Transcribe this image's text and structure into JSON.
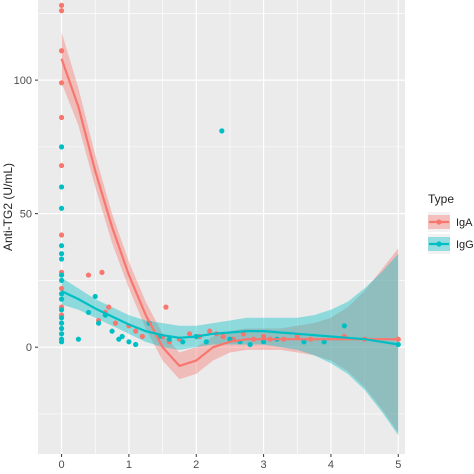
{
  "chart_data": {
    "type": "scatter",
    "title": "",
    "xlabel": "",
    "ylabel": "Anti-TG2 (U/mL)",
    "xlim": [
      -0.35,
      5.1
    ],
    "ylim": [
      -40,
      130
    ],
    "x_ticks": [
      0,
      1,
      2,
      3,
      4,
      5
    ],
    "y_ticks": [
      0,
      50,
      100
    ],
    "x_tick_labels": [
      "0",
      "1",
      "2",
      "3",
      "4",
      "5"
    ],
    "y_tick_labels": [
      "0",
      "50",
      "100"
    ],
    "grid": true,
    "panel_background": "#ebebeb",
    "legend": {
      "title": "Type",
      "position": "right",
      "entries": [
        "IgA",
        "IgG"
      ]
    },
    "series": [
      {
        "name": "IgA",
        "color": "#f8766d",
        "points": [
          {
            "x": 0,
            "y": 128
          },
          {
            "x": 0,
            "y": 126
          },
          {
            "x": 0,
            "y": 111
          },
          {
            "x": 0,
            "y": 99
          },
          {
            "x": 0,
            "y": 86
          },
          {
            "x": 0,
            "y": 68
          },
          {
            "x": 0,
            "y": 42
          },
          {
            "x": 0,
            "y": 28
          },
          {
            "x": 0,
            "y": 22
          },
          {
            "x": 0,
            "y": 15
          },
          {
            "x": 0,
            "y": 12
          },
          {
            "x": 0.4,
            "y": 27
          },
          {
            "x": 0.6,
            "y": 28
          },
          {
            "x": 0.55,
            "y": 10
          },
          {
            "x": 0.65,
            "y": 13
          },
          {
            "x": 0.7,
            "y": 15
          },
          {
            "x": 0.8,
            "y": 9
          },
          {
            "x": 1.0,
            "y": 8
          },
          {
            "x": 1.1,
            "y": 6
          },
          {
            "x": 1.2,
            "y": 4
          },
          {
            "x": 1.55,
            "y": 15
          },
          {
            "x": 1.5,
            "y": 4
          },
          {
            "x": 1.6,
            "y": 2
          },
          {
            "x": 1.75,
            "y": 3
          },
          {
            "x": 1.9,
            "y": 5
          },
          {
            "x": 2.05,
            "y": 4
          },
          {
            "x": 2.2,
            "y": 6
          },
          {
            "x": 2.3,
            "y": 5
          },
          {
            "x": 2.4,
            "y": 4
          },
          {
            "x": 2.55,
            "y": 3
          },
          {
            "x": 2.7,
            "y": 5
          },
          {
            "x": 2.85,
            "y": 3
          },
          {
            "x": 3.0,
            "y": 4
          },
          {
            "x": 3.1,
            "y": 3
          },
          {
            "x": 3.3,
            "y": 3
          },
          {
            "x": 3.5,
            "y": 4
          },
          {
            "x": 3.7,
            "y": 3
          },
          {
            "x": 4.2,
            "y": 4
          },
          {
            "x": 4.5,
            "y": 3
          },
          {
            "x": 5.0,
            "y": 3
          }
        ],
        "fit": [
          {
            "x": 0,
            "y": 108,
            "lo": 99,
            "hi": 118
          },
          {
            "x": 0.25,
            "y": 90,
            "lo": 83,
            "hi": 97
          },
          {
            "x": 0.5,
            "y": 66,
            "lo": 60,
            "hi": 72
          },
          {
            "x": 0.75,
            "y": 45,
            "lo": 39,
            "hi": 50
          },
          {
            "x": 1.0,
            "y": 27,
            "lo": 22,
            "hi": 32
          },
          {
            "x": 1.25,
            "y": 12,
            "lo": 7,
            "hi": 17
          },
          {
            "x": 1.5,
            "y": 0,
            "lo": -5,
            "hi": 5
          },
          {
            "x": 1.75,
            "y": -7,
            "lo": -12,
            "hi": -2
          },
          {
            "x": 2.0,
            "y": -5,
            "lo": -10,
            "hi": 0
          },
          {
            "x": 2.25,
            "y": 0,
            "lo": -5,
            "hi": 4
          },
          {
            "x": 2.5,
            "y": 2,
            "lo": -2,
            "hi": 6
          },
          {
            "x": 2.75,
            "y": 3,
            "lo": -1,
            "hi": 7
          },
          {
            "x": 3.0,
            "y": 3,
            "lo": -1,
            "hi": 7
          },
          {
            "x": 3.25,
            "y": 3,
            "lo": -1,
            "hi": 7
          },
          {
            "x": 3.5,
            "y": 3,
            "lo": -2,
            "hi": 8
          },
          {
            "x": 3.75,
            "y": 3,
            "lo": -3,
            "hi": 9
          },
          {
            "x": 4.0,
            "y": 3,
            "lo": -5,
            "hi": 11
          },
          {
            "x": 4.25,
            "y": 3,
            "lo": -9,
            "hi": 15
          },
          {
            "x": 4.5,
            "y": 3,
            "lo": -15,
            "hi": 21
          },
          {
            "x": 4.75,
            "y": 3,
            "lo": -23,
            "hi": 29
          },
          {
            "x": 5.0,
            "y": 3,
            "lo": -32,
            "hi": 37
          }
        ]
      },
      {
        "name": "IgG",
        "color": "#00bfc4",
        "points": [
          {
            "x": 0,
            "y": 75
          },
          {
            "x": 0,
            "y": 60
          },
          {
            "x": 0,
            "y": 52
          },
          {
            "x": 0,
            "y": 38
          },
          {
            "x": 0,
            "y": 35
          },
          {
            "x": 0,
            "y": 33
          },
          {
            "x": 0,
            "y": 27
          },
          {
            "x": 0,
            "y": 25
          },
          {
            "x": 0,
            "y": 20
          },
          {
            "x": 0,
            "y": 18
          },
          {
            "x": 0,
            "y": 14
          },
          {
            "x": 0,
            "y": 11
          },
          {
            "x": 0,
            "y": 9
          },
          {
            "x": 0,
            "y": 7
          },
          {
            "x": 0,
            "y": 5
          },
          {
            "x": 0,
            "y": 3
          },
          {
            "x": 0,
            "y": 2
          },
          {
            "x": 0.25,
            "y": 3
          },
          {
            "x": 0.4,
            "y": 13
          },
          {
            "x": 0.5,
            "y": 19
          },
          {
            "x": 0.55,
            "y": 9
          },
          {
            "x": 0.65,
            "y": 12
          },
          {
            "x": 0.75,
            "y": 6
          },
          {
            "x": 0.85,
            "y": 3
          },
          {
            "x": 0.9,
            "y": 4
          },
          {
            "x": 1.0,
            "y": 2
          },
          {
            "x": 1.1,
            "y": 1
          },
          {
            "x": 1.3,
            "y": 9
          },
          {
            "x": 1.45,
            "y": 4
          },
          {
            "x": 1.6,
            "y": 3
          },
          {
            "x": 1.8,
            "y": 2
          },
          {
            "x": 2.0,
            "y": 4
          },
          {
            "x": 2.15,
            "y": 2
          },
          {
            "x": 2.38,
            "y": 81
          },
          {
            "x": 2.5,
            "y": 3
          },
          {
            "x": 2.65,
            "y": 2
          },
          {
            "x": 2.8,
            "y": 1
          },
          {
            "x": 3.0,
            "y": 2
          },
          {
            "x": 3.2,
            "y": 3
          },
          {
            "x": 3.6,
            "y": 2
          },
          {
            "x": 3.9,
            "y": 2
          },
          {
            "x": 4.2,
            "y": 8
          },
          {
            "x": 5.0,
            "y": 1
          }
        ],
        "fit": [
          {
            "x": 0,
            "y": 21,
            "lo": 16,
            "hi": 26
          },
          {
            "x": 0.25,
            "y": 18,
            "lo": 14,
            "hi": 22
          },
          {
            "x": 0.5,
            "y": 14.5,
            "lo": 11,
            "hi": 18
          },
          {
            "x": 0.75,
            "y": 11.5,
            "lo": 8,
            "hi": 15
          },
          {
            "x": 1.0,
            "y": 8.5,
            "lo": 5,
            "hi": 12
          },
          {
            "x": 1.25,
            "y": 6,
            "lo": 2,
            "hi": 10
          },
          {
            "x": 1.5,
            "y": 4.5,
            "lo": 0,
            "hi": 9
          },
          {
            "x": 1.75,
            "y": 3.5,
            "lo": -1,
            "hi": 8
          },
          {
            "x": 2.0,
            "y": 4,
            "lo": 0,
            "hi": 8
          },
          {
            "x": 2.25,
            "y": 5,
            "lo": 1,
            "hi": 9
          },
          {
            "x": 2.5,
            "y": 5.5,
            "lo": 1,
            "hi": 10
          },
          {
            "x": 2.75,
            "y": 6,
            "lo": 1,
            "hi": 11
          },
          {
            "x": 3.0,
            "y": 6,
            "lo": 1,
            "hi": 11
          },
          {
            "x": 3.25,
            "y": 5.5,
            "lo": 0,
            "hi": 11
          },
          {
            "x": 3.5,
            "y": 5,
            "lo": -1,
            "hi": 11
          },
          {
            "x": 3.75,
            "y": 4.5,
            "lo": -3,
            "hi": 12
          },
          {
            "x": 4.0,
            "y": 4,
            "lo": -6,
            "hi": 14
          },
          {
            "x": 4.25,
            "y": 3.5,
            "lo": -10,
            "hi": 17
          },
          {
            "x": 4.5,
            "y": 3,
            "lo": -16,
            "hi": 22
          },
          {
            "x": 4.75,
            "y": 2,
            "lo": -24,
            "hi": 28
          },
          {
            "x": 5.0,
            "y": 1,
            "lo": -33,
            "hi": 35
          }
        ]
      }
    ]
  }
}
